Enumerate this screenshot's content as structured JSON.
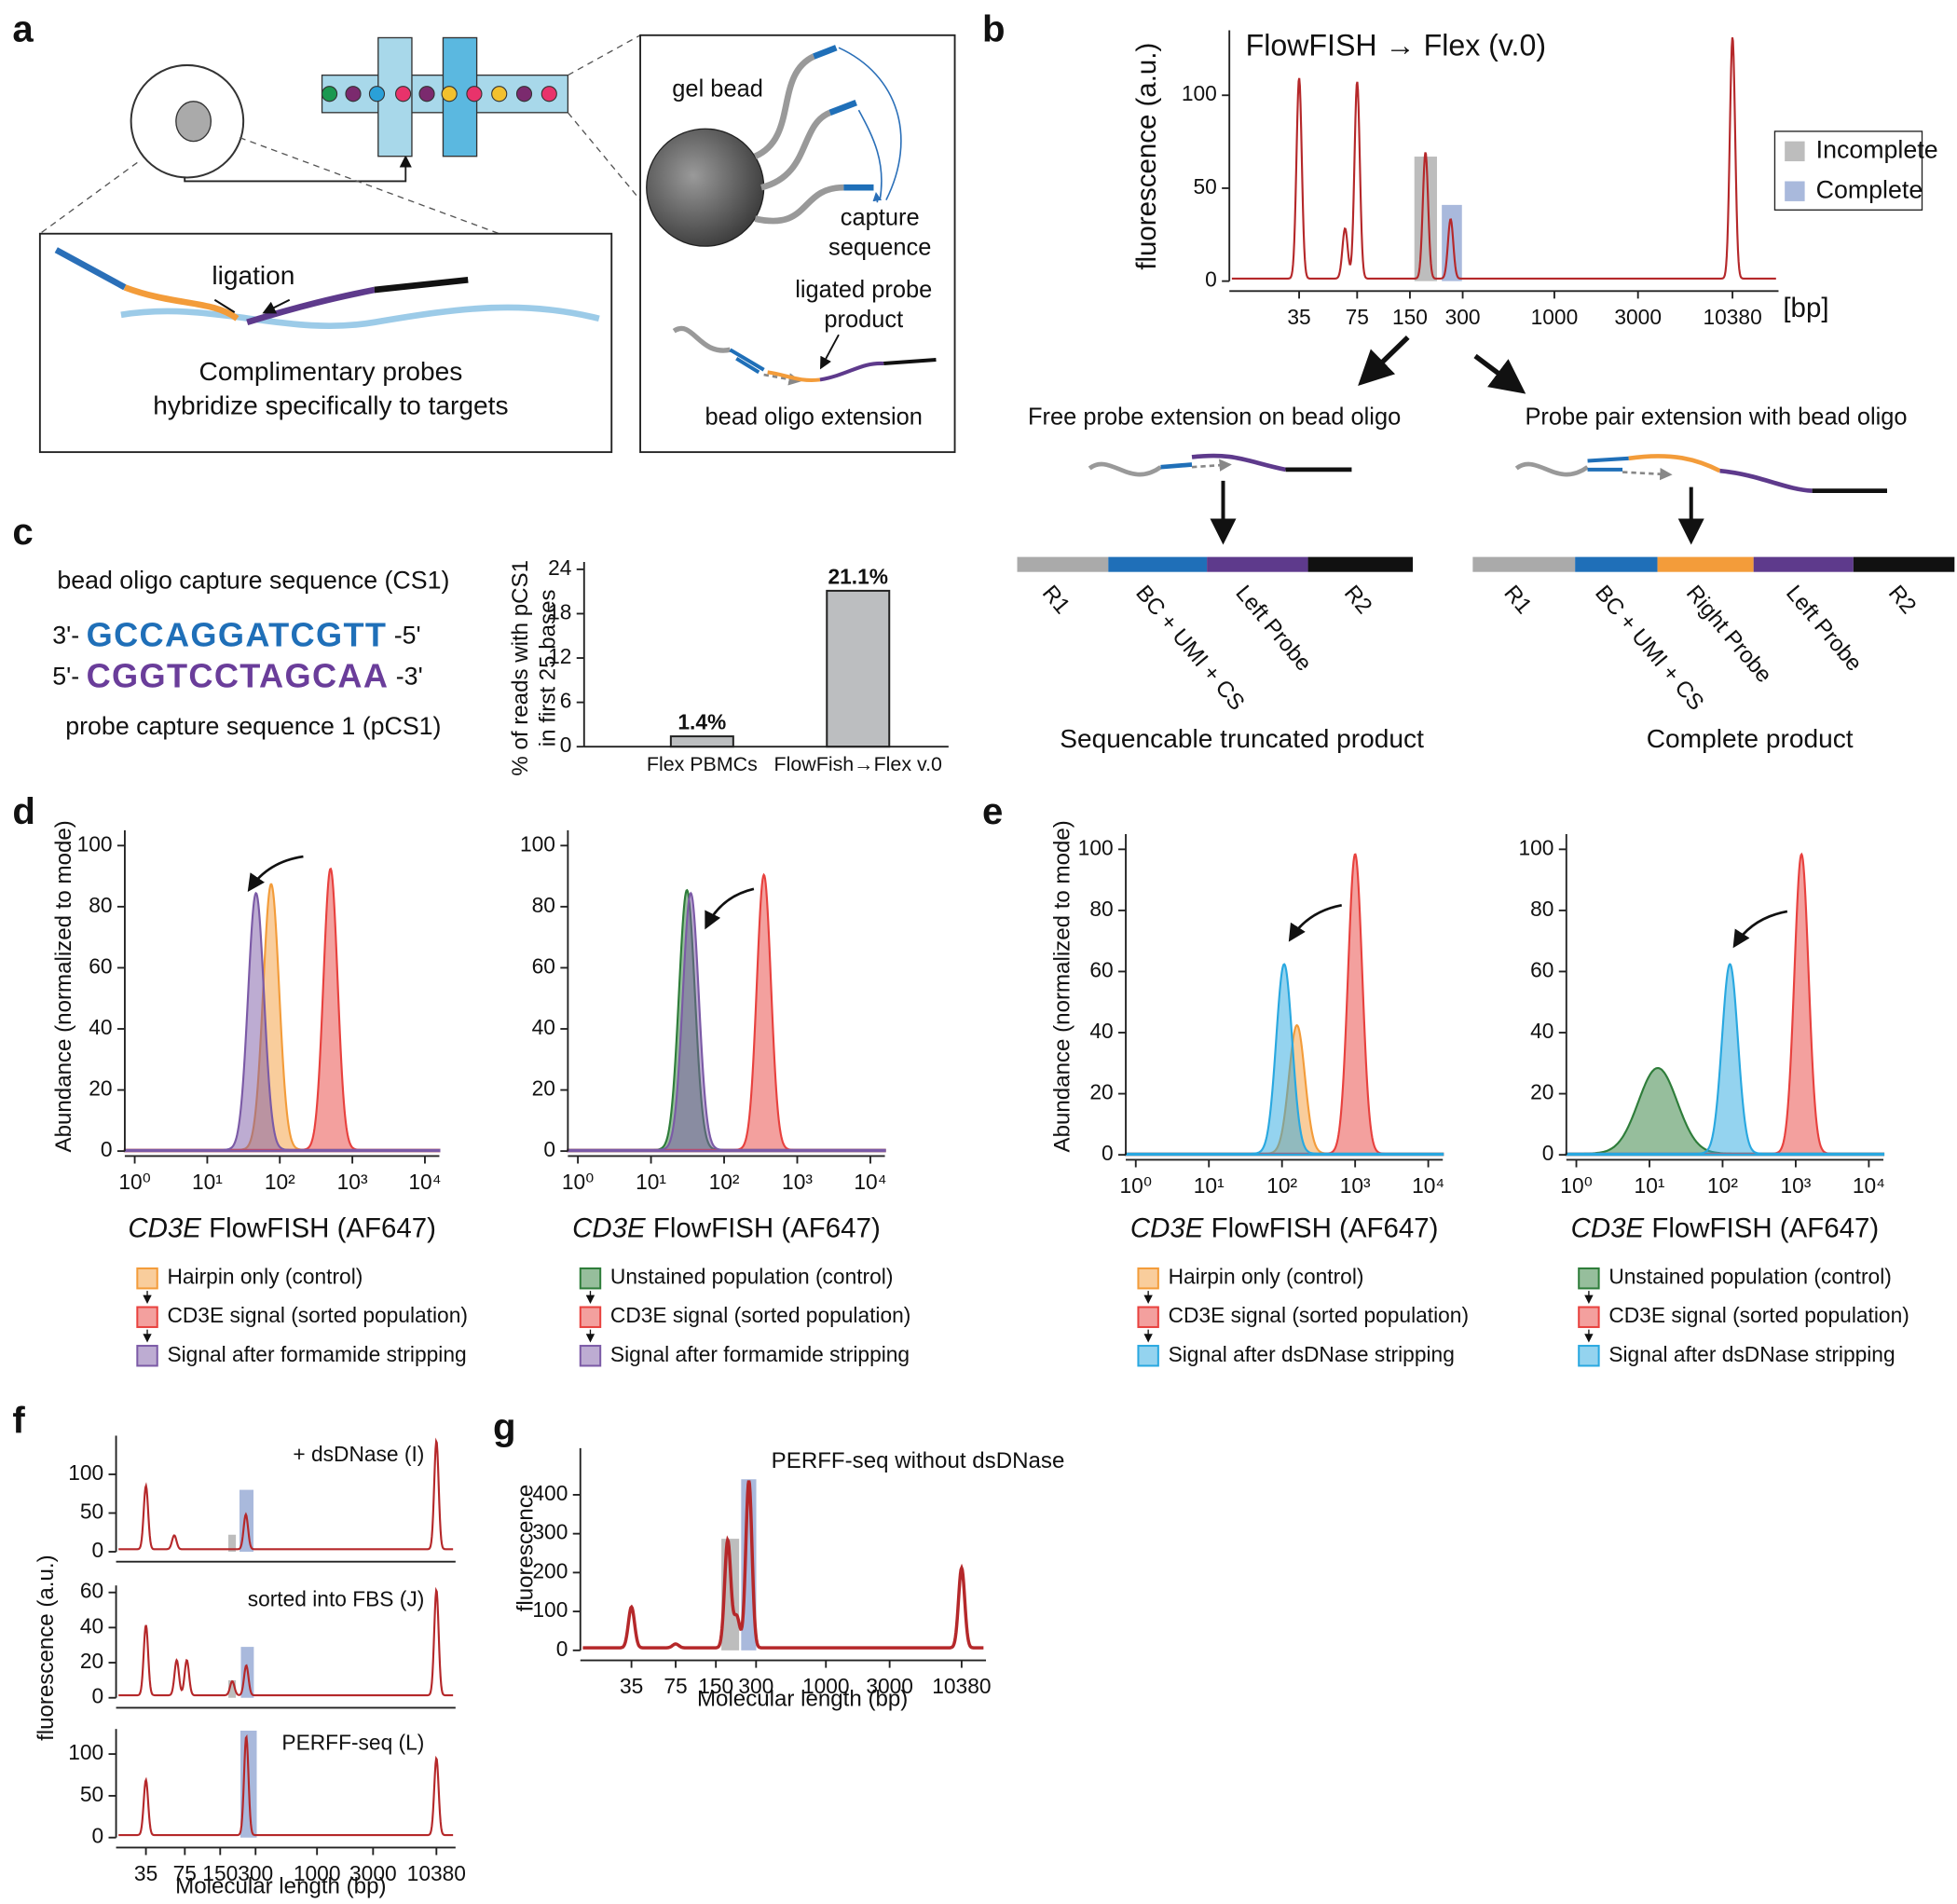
{
  "labels": {
    "a": "a",
    "b": "b",
    "c": "c",
    "d": "d",
    "e": "e",
    "f": "f",
    "g": "g"
  },
  "panel_a": {
    "ligation": "ligation",
    "caption": [
      "Complimentary probes",
      "hybridize specifically to targets"
    ],
    "gel_bead": "gel bead",
    "capture": [
      "capture",
      "sequence"
    ],
    "ligated": [
      "ligated probe",
      "product"
    ],
    "extension": "bead oligo extension"
  },
  "panel_b": {
    "left": {
      "title": "Free probe extension on bead oligo",
      "segments": [
        "R1",
        "BC + UMI + CS",
        "Left Probe",
        "R2"
      ],
      "product": "Sequencable truncated product"
    },
    "right": {
      "title": "Probe pair extension with bead oligo",
      "segments": [
        "R1",
        "BC + UMI + CS",
        "Right Probe",
        "Left Probe",
        "R2"
      ],
      "product": "Complete product"
    }
  },
  "panel_c": {
    "cs1_name": "bead oligo capture sequence (CS1)",
    "cs1": [
      "3'- ",
      "GCCAGGATCGTT",
      " -5'"
    ],
    "pcs1": [
      "5'- ",
      "CGGTCCTAGCAA",
      " -3'"
    ],
    "pcs1_name": "probe capture sequence 1 (pCS1)"
  },
  "chart_data": [
    {
      "type": "line",
      "title": "FlowFISH → Flex (v.0)",
      "ylabel": "fluorescence (a.u.)",
      "xunit": "[bp]",
      "xscale": "log",
      "color": "#b5282a",
      "x": [
        35,
        64,
        75,
        184,
        256,
        10380
      ],
      "values": [
        108,
        27,
        106,
        68,
        32,
        130
      ],
      "xlim": [
        14,
        19000
      ],
      "ylim": [
        0,
        135
      ],
      "xticks": [
        35,
        75,
        150,
        300,
        1000,
        3000,
        10380
      ],
      "yticks": [
        0,
        50,
        100
      ],
      "series": [
        {
          "name": "Incomplete",
          "color": "#bdbdbd",
          "x": [
            159,
            214
          ],
          "value": 67
        },
        {
          "name": "Complete",
          "color": "#a9b9dc",
          "x": [
            228,
            297
          ],
          "value": 41
        }
      ]
    },
    {
      "type": "bar",
      "ylabel": [
        "% of reads with pCS1",
        "in first 25 bases"
      ],
      "categories": [
        "Flex PBMCs",
        "FlowFish→Flex v.0"
      ],
      "values": [
        1.4,
        21.1
      ],
      "value_labels": [
        "1.4%",
        "21.1%"
      ],
      "color": "#bcbec0",
      "ylim": [
        0,
        25
      ],
      "yticks": [
        0,
        6,
        12,
        18,
        24
      ]
    },
    {
      "type": "density",
      "xlabel": [
        "CD3E",
        " FlowFISH (AF647)"
      ],
      "ylabel": "Abundance (normalized to mode)",
      "xscale": "log",
      "xlim": [
        0.73,
        15800
      ],
      "ylim": [
        0,
        105
      ],
      "xticks": [
        {
          "value": 1,
          "label": "10⁰"
        },
        {
          "value": 10,
          "label": "10¹"
        },
        {
          "value": 100,
          "label": "10²"
        },
        {
          "value": 1000,
          "label": "10³"
        },
        {
          "value": 10000,
          "label": "10⁴"
        }
      ],
      "yticks": [
        0,
        20,
        40,
        60,
        80,
        100
      ],
      "series": [
        {
          "name": "Hairpin only (control)",
          "color": "#f39c3a",
          "peak": 76,
          "height": 87
        },
        {
          "name": "CD3E signal (sorted population)",
          "color": "#e8413e",
          "peak": 500,
          "height": 92
        },
        {
          "name": "Signal after formamide stripping",
          "color": "#7b5aa6",
          "peak": 47,
          "height": 84
        }
      ]
    },
    {
      "type": "density",
      "xlabel": [
        "CD3E",
        " FlowFISH (AF647)"
      ],
      "xscale": "log",
      "xlim": [
        0.73,
        15800
      ],
      "ylim": [
        0,
        105
      ],
      "xticks": [
        {
          "value": 1,
          "label": "10⁰"
        },
        {
          "value": 10,
          "label": "10¹"
        },
        {
          "value": 100,
          "label": "10²"
        },
        {
          "value": 1000,
          "label": "10³"
        },
        {
          "value": 10000,
          "label": "10⁴"
        }
      ],
      "yticks": [
        0,
        20,
        40,
        60,
        80,
        100
      ],
      "series": [
        {
          "name": "Unstained population (control)",
          "color": "#2e7d3a",
          "peak": 31,
          "height": 85
        },
        {
          "name": "CD3E signal (sorted population)",
          "color": "#e8413e",
          "peak": 350,
          "height": 90
        },
        {
          "name": "Signal after formamide stripping",
          "color": "#7b5aa6",
          "peak": 35,
          "height": 84
        }
      ]
    },
    {
      "type": "density",
      "xlabel": [
        "CD3E",
        " FlowFISH (AF647)"
      ],
      "ylabel": "Abundance (normalized to mode)",
      "xscale": "log",
      "xlim": [
        0.73,
        15800
      ],
      "ylim": [
        0,
        105
      ],
      "xticks": [
        {
          "value": 1,
          "label": "10⁰"
        },
        {
          "value": 10,
          "label": "10¹"
        },
        {
          "value": 100,
          "label": "10²"
        },
        {
          "value": 1000,
          "label": "10³"
        },
        {
          "value": 10000,
          "label": "10⁴"
        }
      ],
      "yticks": [
        0,
        20,
        40,
        60,
        80,
        100
      ],
      "series": [
        {
          "name": "Hairpin only (control)",
          "color": "#f39c3a",
          "peak": 160,
          "height": 42
        },
        {
          "name": "CD3E signal (sorted population)",
          "color": "#e8413e",
          "peak": 1000,
          "height": 98
        },
        {
          "name": "Signal after dsDNase stripping",
          "color": "#29a8e0",
          "peak": 107,
          "height": 62
        }
      ]
    },
    {
      "type": "density",
      "xlabel": [
        "CD3E",
        " FlowFISH (AF647)"
      ],
      "xscale": "log",
      "xlim": [
        0.73,
        15800
      ],
      "ylim": [
        0,
        105
      ],
      "xticks": [
        {
          "value": 1,
          "label": "10⁰"
        },
        {
          "value": 10,
          "label": "10¹"
        },
        {
          "value": 100,
          "label": "10²"
        },
        {
          "value": 1000,
          "label": "10³"
        },
        {
          "value": 10000,
          "label": "10⁴"
        }
      ],
      "yticks": [
        0,
        20,
        40,
        60,
        80,
        100
      ],
      "series": [
        {
          "name": "Unstained population (control)",
          "color": "#2e7d3a",
          "peak": 13,
          "height": 28
        },
        {
          "name": "CD3E signal (sorted population)",
          "color": "#e8413e",
          "peak": 1200,
          "height": 98
        },
        {
          "name": "Signal after dsDNase stripping",
          "color": "#29a8e0",
          "peak": 126,
          "height": 62
        }
      ]
    },
    {
      "type": "line",
      "title": "+ dsDNase (I)",
      "xscale": "log",
      "color": "#b5282a",
      "x": [
        35,
        61,
        248,
        10380
      ],
      "values": [
        82,
        18,
        45,
        140
      ],
      "xlim": [
        19.5,
        15100
      ],
      "ylim": [
        0,
        150
      ],
      "yticks": [
        0,
        50,
        100
      ],
      "series": [
        {
          "name": null,
          "color": "#bdbdbd",
          "x": [
            176,
            204
          ],
          "value": 22
        },
        {
          "name": null,
          "color": "#a9b9dc",
          "x": [
            219,
            288
          ],
          "value": 80
        }
      ]
    },
    {
      "type": "line",
      "title": "sorted into FBS (J)",
      "ylabel": "fluorescence (a.u.)",
      "xscale": "log",
      "color": "#b5282a",
      "x": [
        35,
        64,
        78,
        190,
        250,
        10380
      ],
      "values": [
        40,
        20,
        20,
        8,
        17,
        60
      ],
      "xlim": [
        19.5,
        15100
      ],
      "ylim": [
        0,
        64
      ],
      "yticks": [
        0,
        20,
        40,
        60
      ],
      "series": [
        {
          "name": null,
          "color": "#bdbdbd",
          "x": [
            176,
            204
          ],
          "value": 10
        },
        {
          "name": null,
          "color": "#a9b9dc",
          "x": [
            225,
            290
          ],
          "value": 29
        }
      ]
    },
    {
      "type": "line",
      "title": "PERFF-seq (L)",
      "xlabel": "Molecular length (bp)",
      "xscale": "log",
      "color": "#b5282a",
      "x": [
        35,
        250,
        10380
      ],
      "values": [
        66,
        118,
        92
      ],
      "xlim": [
        19.5,
        15100
      ],
      "ylim": [
        0,
        130
      ],
      "xticks": [
        35,
        75,
        150,
        300,
        1000,
        3000,
        10380
      ],
      "yticks": [
        0,
        50,
        100
      ],
      "series": [
        {
          "name": null,
          "color": "#a9b9dc",
          "x": [
            223,
            307
          ],
          "value": 128
        }
      ]
    },
    {
      "type": "line",
      "title": "PERFF-seq without dsDNase",
      "xlabel": "Molecular length (bp)",
      "ylabel": "fluorescence",
      "xscale": "log",
      "color": "#b5282a",
      "x": [
        35,
        75,
        184,
        215,
        265,
        10380
      ],
      "values": [
        105,
        10,
        276,
        80,
        430,
        205
      ],
      "xlim": [
        14.5,
        15800
      ],
      "ylim": [
        0,
        520
      ],
      "xticks": [
        35,
        75,
        150,
        300,
        1000,
        3000,
        10380
      ],
      "yticks": [
        0,
        100,
        200,
        300,
        400
      ],
      "series": [
        {
          "name": null,
          "color": "#bdbdbd",
          "x": [
            165,
            224
          ],
          "value": 287
        },
        {
          "name": null,
          "color": "#a9b9dc",
          "x": [
            232,
            301
          ],
          "value": 440
        }
      ]
    }
  ]
}
